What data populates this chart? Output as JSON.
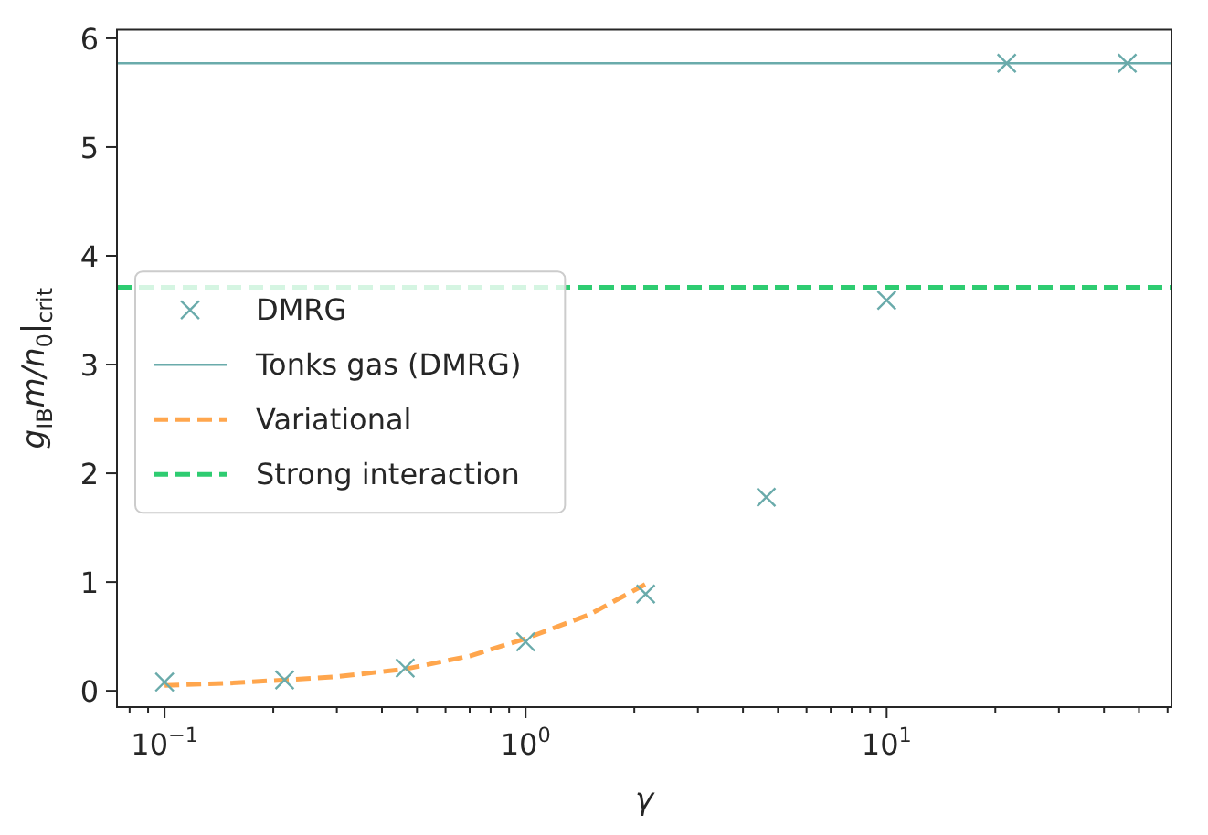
{
  "chart_data": {
    "type": "scatter",
    "xlabel": "γ",
    "ylabel": "g$_{IB}$m/n$_{0}$|$_{crit}$",
    "log": "x",
    "legend": "center left",
    "grid": false,
    "xlim": [
      0.0738,
      61.5
    ],
    "ylim": [
      -0.15,
      6.08
    ],
    "xticks": [
      {
        "value": 0.08,
        "label": null
      },
      {
        "value": 0.09,
        "label": null
      },
      {
        "value": 0.1,
        "label": "10$^{−1}$"
      },
      {
        "value": 0.2,
        "label": null
      },
      {
        "value": 0.3,
        "label": null
      },
      {
        "value": 0.4,
        "label": null
      },
      {
        "value": 0.5,
        "label": null
      },
      {
        "value": 0.6,
        "label": null
      },
      {
        "value": 0.7,
        "label": null
      },
      {
        "value": 0.8,
        "label": null
      },
      {
        "value": 0.9,
        "label": null
      },
      {
        "value": 1,
        "label": "10$^{0}$"
      },
      {
        "value": 2,
        "label": null
      },
      {
        "value": 3,
        "label": null
      },
      {
        "value": 4,
        "label": null
      },
      {
        "value": 5,
        "label": null
      },
      {
        "value": 6,
        "label": null
      },
      {
        "value": 7,
        "label": null
      },
      {
        "value": 8,
        "label": null
      },
      {
        "value": 9,
        "label": null
      },
      {
        "value": 10,
        "label": "10$^{1}$"
      },
      {
        "value": 20,
        "label": null
      },
      {
        "value": 30,
        "label": null
      },
      {
        "value": 40,
        "label": null
      },
      {
        "value": 50,
        "label": null
      },
      {
        "value": 60,
        "label": null
      }
    ],
    "yticks": [
      0,
      1,
      2,
      3,
      4,
      5,
      6
    ],
    "series": [
      {
        "name": "DMRG",
        "type": "scatter",
        "marker": "cross",
        "color": "#6aabab",
        "x": [
          0.1,
          0.215,
          0.464,
          1,
          2.15,
          4.64,
          10,
          21.5,
          46.4
        ],
        "values": [
          0.08,
          0.1,
          0.21,
          0.45,
          0.89,
          1.78,
          3.59,
          5.77,
          5.77
        ]
      },
      {
        "name": "Tonks gas (DMRG)",
        "type": "line",
        "marker": "none",
        "line_style": "solid",
        "color": "#6aabab",
        "x": [
          0.0738,
          61.5
        ],
        "values": [
          5.77,
          5.77
        ]
      },
      {
        "name": "Variational",
        "type": "line",
        "marker": "none",
        "line_style": "dashed",
        "color": "#ffa64d",
        "x": [
          0.1,
          0.15,
          0.215,
          0.3,
          0.464,
          0.7,
          1,
          1.5,
          2.15
        ],
        "values": [
          0.05,
          0.07,
          0.1,
          0.13,
          0.2,
          0.32,
          0.48,
          0.7,
          0.98
        ]
      },
      {
        "name": "Strong interaction",
        "type": "line",
        "marker": "none",
        "line_style": "dashed",
        "color": "#2ecc71",
        "x": [
          0.0738,
          61.5
        ],
        "values": [
          3.71,
          3.71
        ]
      }
    ]
  }
}
